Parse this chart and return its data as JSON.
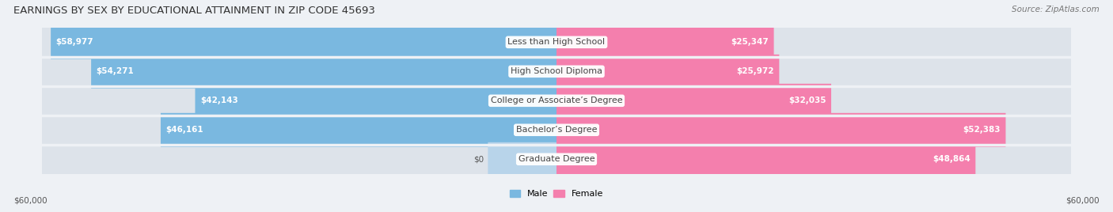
{
  "title": "EARNINGS BY SEX BY EDUCATIONAL ATTAINMENT IN ZIP CODE 45693",
  "source": "Source: ZipAtlas.com",
  "categories": [
    "Less than High School",
    "High School Diploma",
    "College or Associate’s Degree",
    "Bachelor’s Degree",
    "Graduate Degree"
  ],
  "male_values": [
    58977,
    54271,
    42143,
    46161,
    0
  ],
  "female_values": [
    25347,
    25972,
    32035,
    52383,
    48864
  ],
  "male_labels": [
    "$58,977",
    "$54,271",
    "$42,143",
    "$46,161",
    "$0"
  ],
  "female_labels": [
    "$25,347",
    "$25,972",
    "$32,035",
    "$52,383",
    "$48,864"
  ],
  "male_color": "#7ab8e0",
  "female_color": "#f47fad",
  "male_color_pale": "#b8d4ea",
  "female_color_pale": "#f9b8d0",
  "max_value": 60000,
  "x_label_left": "$60,000",
  "x_label_right": "$60,000",
  "bg_color": "#eef1f5",
  "bar_bg_color": "#dde3ea",
  "title_fontsize": 9.5,
  "source_fontsize": 7.5,
  "label_fontsize": 7.5,
  "cat_fontsize": 8.0
}
